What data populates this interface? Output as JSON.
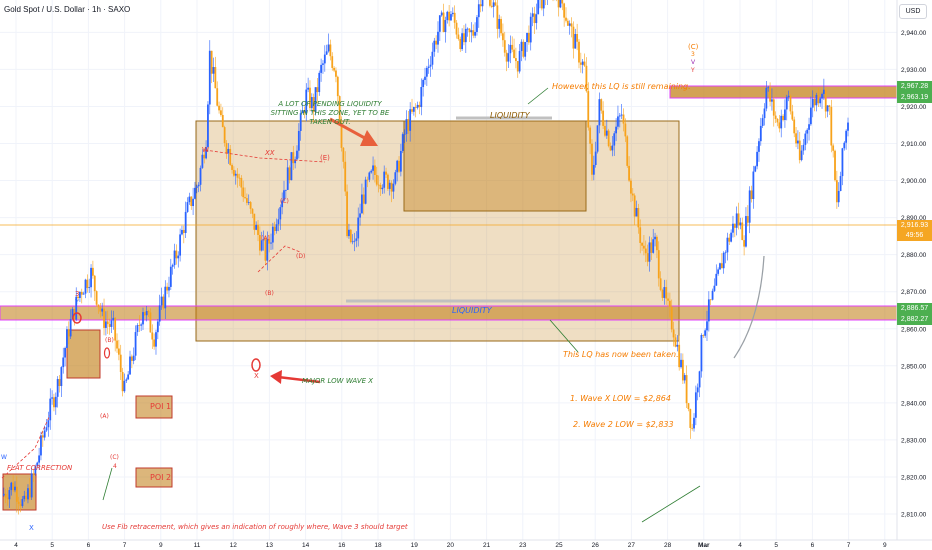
{
  "header": {
    "symbol_title": "Gold Spot / U.S. Dollar · 1h · SAXO",
    "currency_button": "USD"
  },
  "price_tags": {
    "last_price": "2,916.93",
    "countdown": "49:56",
    "upper_level_1": "2,967.28",
    "upper_level_2": "2,963.19",
    "lower_level_1": "2,886.57",
    "lower_level_2": "2,882.27"
  },
  "annotations": {
    "liquidity_note": "A LOT OF PENDING LIQUIDITY SITTING IN THIS ZONE, YET TO BE TAKEN OUT.",
    "lq_remaining": "However, this LQ is still remaining.",
    "liquidity_top": "LIQUIDITY",
    "liquidity_mid": "LIQUIDITY",
    "lq_taken": "This LQ has now been taken.",
    "major_low": "MAJOR LOW WAVE X",
    "wave_x_low": "1. Wave X LOW = $2,864",
    "wave2_low": "2. Wave 2 LOW = $2,833",
    "flat_correction": "FLAT CORRECTION",
    "poi1": "POI 1",
    "poi2": "POI 2",
    "fib_note": "Use Fib retracement, which gives an indication of roughly where, Wave 3 should target"
  },
  "wave_labels": {
    "w": "W",
    "xx": "XX",
    "e": "(E)",
    "c_upper": "(C)",
    "a_upper": "(A)",
    "b_upper": "(B)",
    "d_upper": "(D)",
    "x_major": "X",
    "three": "3",
    "y": "Y",
    "b_left": "(B)",
    "a_left": "(A)",
    "c_left": "(C)",
    "four": "4",
    "x_low": "X",
    "w_low": "W",
    "c_top": "(C)",
    "three_top": "3",
    "v": "V",
    "y_top": "Y"
  },
  "colors": {
    "bull": "#2962ff",
    "bear": "#f7a21b",
    "zone": "#c07a0e",
    "text_orange": "#f57c00",
    "text_green": "#2e7d32",
    "red": "#e53935",
    "liq_line": "#c0c0c0",
    "pink": "#e040fb",
    "tag_green": "#4caf50",
    "tag_blue": "#2962ff",
    "price_line": "#f5a623"
  },
  "chart_data": {
    "type": "candlestick",
    "title": "Gold Spot / U.S. Dollar · 1h · SAXO",
    "ylim": [
      2805,
      2995
    ],
    "y_ticks": [
      2810,
      2820,
      2830,
      2840,
      2850,
      2860,
      2870,
      2880,
      2890,
      2900,
      2910,
      2920,
      2930,
      2940,
      2950,
      2960,
      2970,
      2980,
      2990
    ],
    "y_tick_labels": [
      "2,810.00",
      "2,820.00",
      "2,830.00",
      "2,840.00",
      "2,850.00",
      "2,860.00",
      "2,870.00",
      "2,880.00",
      "2,890.00",
      "2,900.00",
      "2,910.00",
      "2,920.00",
      "2,930.00",
      "2,940.00",
      "2,950.00",
      "2,960.00",
      "2,970.00",
      "2,980.00",
      "2,990.00"
    ],
    "x_ticks": [
      "4",
      "5",
      "6",
      "7",
      "9",
      "11",
      "12",
      "13",
      "14",
      "16",
      "18",
      "19",
      "20",
      "21",
      "23",
      "25",
      "26",
      "27",
      "28",
      "Mar",
      "4",
      "5",
      "6",
      "7",
      "9"
    ],
    "close_path": [
      [
        0,
        2815
      ],
      [
        3,
        2818
      ],
      [
        6,
        2812
      ],
      [
        9,
        2822
      ],
      [
        12,
        2835
      ],
      [
        15,
        2845
      ],
      [
        18,
        2860
      ],
      [
        21,
        2870
      ],
      [
        24,
        2875
      ],
      [
        27,
        2863
      ],
      [
        30,
        2860
      ],
      [
        33,
        2843
      ],
      [
        35,
        2852
      ],
      [
        38,
        2866
      ],
      [
        41,
        2858
      ],
      [
        44,
        2870
      ],
      [
        47,
        2880
      ],
      [
        50,
        2892
      ],
      [
        53,
        2900
      ],
      [
        55,
        2912
      ],
      [
        56,
        2934
      ],
      [
        59,
        2915
      ],
      [
        62,
        2905
      ],
      [
        65,
        2897
      ],
      [
        68,
        2888
      ],
      [
        71,
        2880
      ],
      [
        73,
        2887
      ],
      [
        76,
        2898
      ],
      [
        79,
        2908
      ],
      [
        82,
        2923
      ],
      [
        84,
        2920
      ],
      [
        86,
        2930
      ],
      [
        88,
        2935
      ],
      [
        90,
        2930
      ],
      [
        92,
        2905
      ],
      [
        93,
        2885
      ],
      [
        95,
        2882
      ],
      [
        97,
        2895
      ],
      [
        100,
        2902
      ],
      [
        103,
        2900
      ],
      [
        106,
        2900
      ],
      [
        109,
        2915
      ],
      [
        112,
        2920
      ],
      [
        115,
        2932
      ],
      [
        118,
        2942
      ],
      [
        121,
        2945
      ],
      [
        124,
        2937
      ],
      [
        127,
        2940
      ],
      [
        130,
        2955
      ],
      [
        133,
        2945
      ],
      [
        136,
        2935
      ],
      [
        139,
        2932
      ],
      [
        142,
        2940
      ],
      [
        145,
        2948
      ],
      [
        148,
        2953
      ],
      [
        151,
        2948
      ],
      [
        154,
        2938
      ],
      [
        157,
        2930
      ],
      [
        159,
        2900
      ],
      [
        161,
        2920
      ],
      [
        164,
        2910
      ],
      [
        167,
        2918
      ],
      [
        170,
        2895
      ],
      [
        173,
        2880
      ],
      [
        176,
        2883
      ],
      [
        178,
        2870
      ],
      [
        181,
        2860
      ],
      [
        184,
        2845
      ],
      [
        186,
        2833
      ],
      [
        189,
        2860
      ],
      [
        192,
        2870
      ],
      [
        195,
        2882
      ],
      [
        198,
        2890
      ],
      [
        200,
        2885
      ],
      [
        202,
        2898
      ],
      [
        204,
        2912
      ],
      [
        206,
        2925
      ],
      [
        209,
        2915
      ],
      [
        212,
        2922
      ],
      [
        215,
        2905
      ],
      [
        218,
        2920
      ],
      [
        221,
        2925
      ],
      [
        223,
        2918
      ],
      [
        225,
        2893
      ],
      [
        227,
        2910
      ],
      [
        228,
        2917
      ]
    ]
  }
}
